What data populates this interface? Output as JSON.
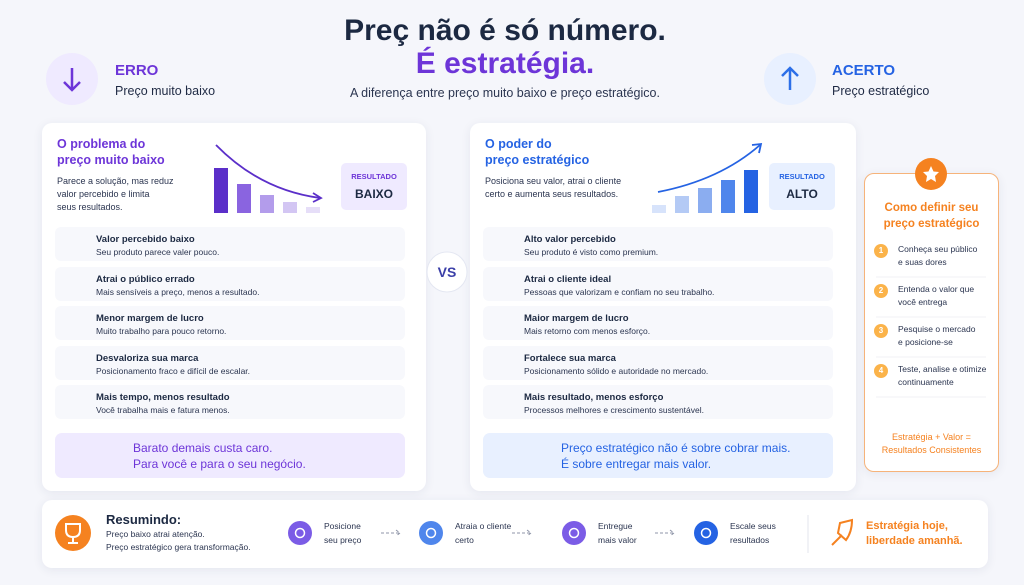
{
  "header": {
    "title_lines": [
      "Preç não é só número.",
      "É estratégia."
    ],
    "subtitle": "A diferença entre preço muito baixo e preço estratégico."
  },
  "left_badge": {
    "title": "ERRO",
    "subtitle": "Preço muito baixo"
  },
  "right_badge": {
    "title": "ACERTO",
    "subtitle": "Preço estratégico"
  },
  "left_card": {
    "title_lines": [
      "O problema do",
      "preço muito baixo"
    ],
    "description_lines": [
      "Parece a solução, mas reduz",
      "valor percebido e limita",
      "seus resultados."
    ],
    "result_label": "RESULTADO",
    "result_value": "BAIXO",
    "items": [
      {
        "title": "Valor percebido baixo",
        "text": "Seu produto parece valer pouco."
      },
      {
        "title": "Atrai o público errado",
        "text": "Mais sensíveis a preço, menos a resultado."
      },
      {
        "title": "Menor margem de lucro",
        "text": "Muito trabalho para pouco retorno."
      },
      {
        "title": "Desvaloriza sua marca",
        "text": "Posicionamento fraco e difícil de escalar."
      },
      {
        "title": "Mais tempo, menos resultado",
        "text": "Você trabalha mais e fatura menos."
      }
    ],
    "footer_lines": [
      "Barato demais custa caro.",
      "Para você e para o seu negócio."
    ]
  },
  "vs": "VS",
  "right_card": {
    "title_lines": [
      "O poder do",
      "preço estratégico"
    ],
    "description_lines": [
      "Posiciona seu valor, atrai o cliente",
      "certo e aumenta seus resultados."
    ],
    "result_label": "RESULTADO",
    "result_value": "ALTO",
    "items": [
      {
        "title": "Alto valor percebido",
        "text": "Seu produto é visto como premium."
      },
      {
        "title": "Atrai o cliente ideal",
        "text": "Pessoas que valorizam e confiam no seu trabalho."
      },
      {
        "title": "Maior margem de lucro",
        "text": "Mais retorno com menos esforço."
      },
      {
        "title": "Fortalece sua marca",
        "text": "Posicionamento sólido e autoridade no mercado."
      },
      {
        "title": "Mais resultado, menos esforço",
        "text": "Processos melhores e crescimento sustentável."
      }
    ],
    "footer_lines": [
      "Preço estratégico não é sobre cobrar mais.",
      "É sobre entregar mais valor."
    ]
  },
  "side_card": {
    "title_lines": [
      "Como definir seu",
      "preço estratégico"
    ],
    "steps": [
      {
        "number": 1,
        "text_lines": [
          "Conheça seu público",
          "e suas dores"
        ]
      },
      {
        "number": 2,
        "text_lines": [
          "Entenda o valor que",
          "você entrega"
        ]
      },
      {
        "number": 3,
        "text_lines": [
          "Pesquise o mercado",
          "e posicione-se"
        ]
      },
      {
        "number": 4,
        "text_lines": [
          "Teste, analise e otimize",
          "continuamente"
        ]
      }
    ],
    "footer_lines": [
      "Estratégia + Valor =",
      "Resultados Consistentes"
    ]
  },
  "summary": {
    "title": "Resumindo:",
    "lines": [
      "Preço baixo atrai atenção.",
      "Preço estratégico gera transformação."
    ],
    "steps": [
      {
        "text_lines": [
          "Posicione",
          "seu preço"
        ]
      },
      {
        "text_lines": [
          "Atraia o cliente",
          "certo"
        ]
      },
      {
        "text_lines": [
          "Entregue",
          "mais valor"
        ]
      },
      {
        "text_lines": [
          "Escale seus",
          "resultados"
        ]
      }
    ],
    "tagline_lines": [
      "Estratégia hoje,",
      "liberdade amanhã."
    ]
  }
}
